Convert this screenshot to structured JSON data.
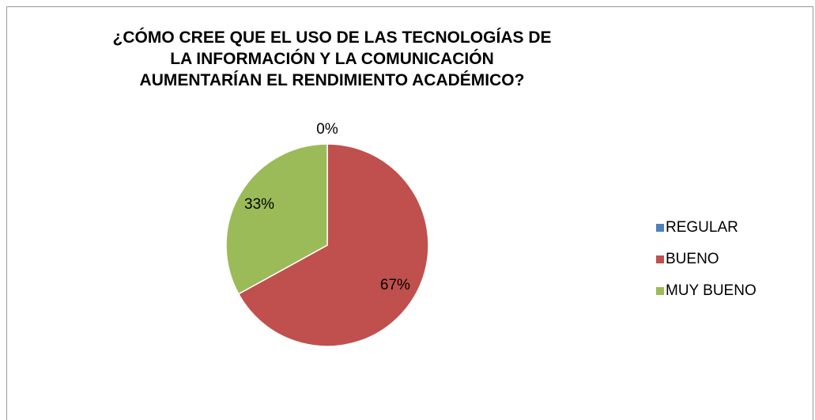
{
  "chart_data": {
    "type": "pie",
    "title": "¿CÓMO CREE QUE EL USO DE LAS TECNOLOGÍAS DE LA INFORMACIÓN Y LA COMUNICACIÓN AUMENTARÍAN EL RENDIMIENTO ACADÉMICO?",
    "categories": [
      "REGULAR",
      "BUENO",
      "MUY BUENO"
    ],
    "values": [
      0,
      67,
      33
    ],
    "value_labels": [
      "0%",
      "67%",
      "33%"
    ],
    "colors": [
      "#4f81bd",
      "#c0504d",
      "#9bbb59"
    ],
    "legend": "right"
  }
}
